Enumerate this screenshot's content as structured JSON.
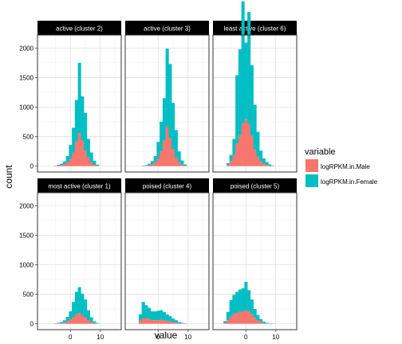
{
  "chart_data": {
    "type": "bar",
    "subtype": "faceted-stacked-histogram",
    "xlabel": "value",
    "ylabel": "count",
    "xlim": [
      -11,
      17
    ],
    "ylim": [
      -100,
      2220
    ],
    "x_ticks": [
      0,
      10
    ],
    "y_ticks": [
      0,
      500,
      1000,
      1500,
      2000
    ],
    "grid": true,
    "bin_width": 1,
    "legend": {
      "title": "variable",
      "position": "right",
      "entries": [
        {
          "name": "logRPKM.in.Male",
          "color": "#F8766D"
        },
        {
          "name": "logRPKM.in.Female",
          "color": "#00BFC4"
        }
      ]
    },
    "facets": [
      {
        "title": "active (cluster 2)",
        "x": [
          -5,
          -4,
          -3,
          -2,
          -1,
          0,
          1,
          2,
          3,
          4,
          5,
          6,
          7,
          8,
          9
        ],
        "male": [
          3,
          8,
          15,
          30,
          60,
          120,
          230,
          420,
          560,
          440,
          260,
          140,
          60,
          20,
          5
        ],
        "female": [
          5,
          12,
          25,
          50,
          110,
          240,
          420,
          700,
          1190,
          740,
          640,
          320,
          170,
          70,
          20
        ]
      },
      {
        "title": "active (cluster 3)",
        "x": [
          -5,
          -4,
          -3,
          -2,
          -1,
          0,
          1,
          2,
          3,
          4,
          5,
          6,
          7,
          8,
          9
        ],
        "male": [
          3,
          6,
          15,
          30,
          60,
          130,
          250,
          430,
          670,
          480,
          290,
          150,
          70,
          25,
          8
        ],
        "female": [
          5,
          10,
          25,
          55,
          110,
          280,
          500,
          720,
          1320,
          1250,
          780,
          460,
          180,
          70,
          20
        ]
      },
      {
        "title": "least active (cluster 6)",
        "x": [
          -6,
          -5,
          -4,
          -3,
          -2,
          -1,
          0,
          1,
          2,
          3,
          4,
          5,
          6,
          7,
          8,
          9
        ],
        "male": [
          20,
          80,
          190,
          380,
          520,
          720,
          800,
          710,
          510,
          280,
          160,
          80,
          40,
          20,
          8,
          3
        ],
        "female": [
          30,
          110,
          270,
          1160,
          1460,
          2070,
          1290,
          1900,
          1200,
          760,
          420,
          180,
          90,
          50,
          20,
          8
        ]
      },
      {
        "title": "most active (cluster 1)",
        "x": [
          -5,
          -4,
          -3,
          -2,
          -1,
          0,
          1,
          2,
          3,
          4,
          5,
          6,
          7,
          8,
          9
        ],
        "male": [
          3,
          6,
          10,
          20,
          40,
          70,
          110,
          160,
          180,
          150,
          110,
          60,
          30,
          10,
          3
        ],
        "female": [
          5,
          10,
          20,
          40,
          75,
          140,
          260,
          380,
          440,
          360,
          300,
          170,
          80,
          30,
          10
        ]
      },
      {
        "title": "poised (cluster 4)",
        "x": [
          -6,
          -5,
          -4,
          -3,
          -2,
          -1,
          0,
          1,
          2,
          3,
          4,
          5,
          6,
          7,
          8,
          9
        ],
        "male": [
          50,
          90,
          95,
          80,
          60,
          60,
          60,
          70,
          60,
          50,
          40,
          30,
          20,
          10,
          5,
          3
        ],
        "female": [
          110,
          280,
          220,
          190,
          150,
          150,
          160,
          160,
          140,
          110,
          90,
          60,
          40,
          20,
          10,
          5
        ]
      },
      {
        "title": "poised (cluster 5)",
        "x": [
          -7,
          -6,
          -5,
          -4,
          -3,
          -2,
          -1,
          0,
          1,
          2,
          3,
          4,
          5,
          6,
          7,
          8,
          9
        ],
        "male": [
          15,
          60,
          120,
          170,
          190,
          200,
          210,
          230,
          210,
          160,
          100,
          60,
          30,
          15,
          5,
          3,
          2
        ],
        "female": [
          30,
          140,
          280,
          320,
          350,
          380,
          390,
          480,
          360,
          250,
          150,
          90,
          50,
          20,
          10,
          5,
          3
        ]
      }
    ]
  }
}
